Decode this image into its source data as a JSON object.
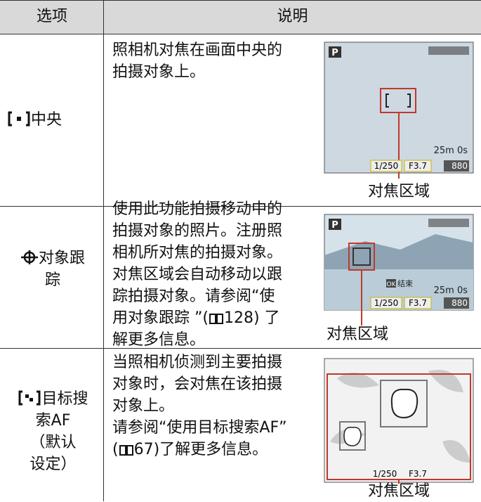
{
  "table": {
    "headers": [
      "选项",
      "说明"
    ],
    "rows": [
      {
        "option": [
          "中央"
        ],
        "description": [
          "照相机对焦在画面中央的",
          "拍摄对象上。"
        ],
        "screen": {
          "mode": "P",
          "time": "25m 0s",
          "shutter": "1/250",
          "aperture": "F3.7",
          "shots": "880"
        },
        "caption": "对焦区域"
      },
      {
        "option": [
          "对象跟",
          "踪"
        ],
        "description": [
          "使用此功能拍摄移动中的",
          "拍摄对象的照片。注册照",
          "相机所对焦的拍摄对象。",
          "对焦区域会自动移动以跟",
          "踪拍摄对象。请参阅“使",
          [
            "用对象跟踪 ”(",
            "128) 了"
          ],
          "解更多信息。"
        ],
        "screen": {
          "mode": "P",
          "ok_key": "OK",
          "button": "结束",
          "time": "25m 0s",
          "shutter": "1/250",
          "aperture": "F3.7",
          "shots": "880"
        },
        "caption": "对焦区域"
      },
      {
        "option": [
          "目标搜",
          "索AF",
          "（默认",
          "设定）"
        ],
        "description": [
          "当照相机侦测到主要拍摄",
          "对象时，会对焦在该拍摄",
          "对象上。",
          "请参阅“使用目标搜索AF”",
          [
            "(",
            "67)了解更多信息。"
          ]
        ],
        "screen": {
          "shutter": "1/250",
          "aperture": "F3.7"
        },
        "caption": "对焦区域"
      }
    ]
  }
}
